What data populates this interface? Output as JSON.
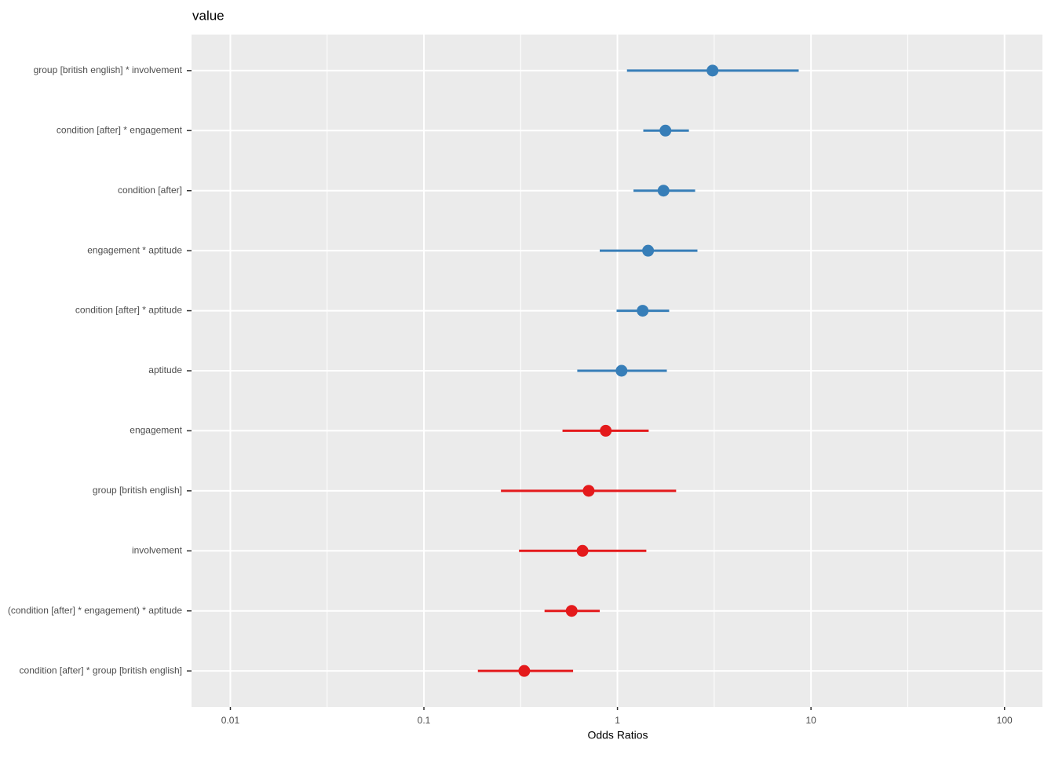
{
  "chart_data": {
    "type": "forest",
    "title": "value",
    "x_label": "Odds Ratios",
    "categories": [
      "group [british english] * involvement",
      "condition [after] * engagement",
      "condition [after]",
      "engagement * aptitude",
      "condition [after] * aptitude",
      "aptitude",
      "engagement",
      "group [british english]",
      "involvement",
      "(condition [after] * engagement) * aptitude",
      "condition [after] * group [british english]"
    ],
    "values": [
      3.1,
      1.77,
      1.73,
      1.44,
      1.35,
      1.05,
      0.87,
      0.71,
      0.66,
      0.58,
      0.33
    ],
    "ci_low": [
      1.12,
      1.36,
      1.21,
      0.81,
      0.99,
      0.62,
      0.52,
      0.25,
      0.31,
      0.42,
      0.19
    ],
    "ci_high": [
      8.64,
      2.34,
      2.52,
      2.59,
      1.85,
      1.8,
      1.45,
      2.01,
      1.41,
      0.81,
      0.59
    ],
    "colors": [
      "#377eb8",
      "#377eb8",
      "#377eb8",
      "#377eb8",
      "#377eb8",
      "#377eb8",
      "#e41a1c",
      "#e41a1c",
      "#e41a1c",
      "#e41a1c",
      "#e41a1c"
    ],
    "xscale": "log",
    "xlim": [
      0.0063,
      157
    ],
    "xticks": [
      0.01,
      0.1,
      1,
      10,
      100
    ],
    "grid": true
  }
}
